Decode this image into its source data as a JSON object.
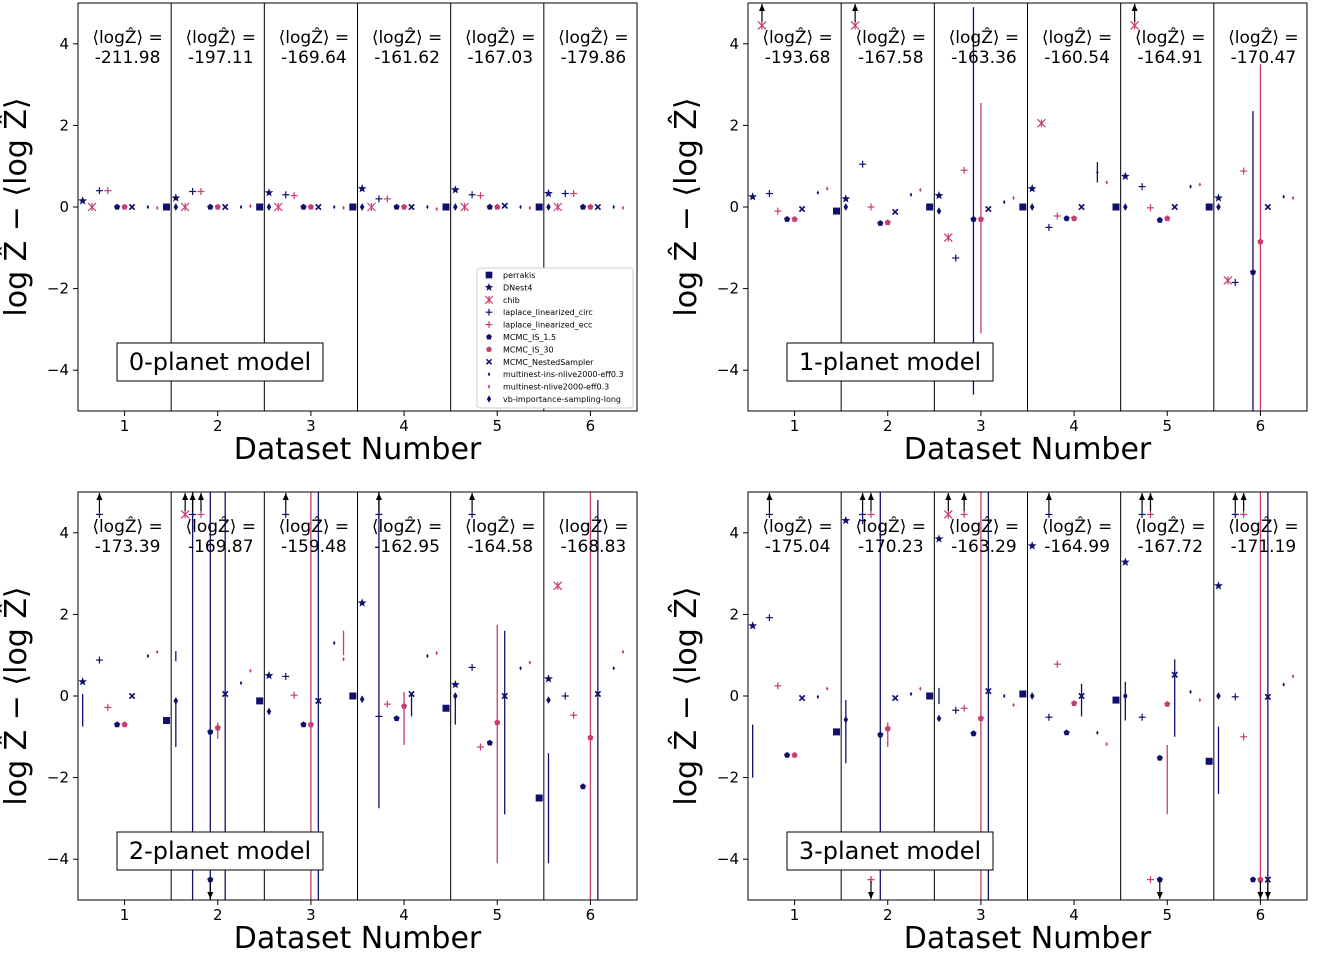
{
  "colors": {
    "navy": "#10106e",
    "pink": "#c83c73",
    "axis": "#000000"
  },
  "legend_entries": [
    {
      "name": "perrakis",
      "marker": "square",
      "color": "navy"
    },
    {
      "name": "DNest4",
      "marker": "star",
      "color": "navy"
    },
    {
      "name": "chib",
      "marker": "x-star",
      "color": "pink"
    },
    {
      "name": "laplace_linearized_circ",
      "marker": "plus",
      "color": "navy"
    },
    {
      "name": "laplace_linearized_ecc",
      "marker": "plus",
      "color": "pink"
    },
    {
      "name": "MCMC_IS_1.5",
      "marker": "pentagon",
      "color": "navy"
    },
    {
      "name": "MCMC_IS_30",
      "marker": "pentagon",
      "color": "pink"
    },
    {
      "name": "MCMC_NestedSampler",
      "marker": "x-filled",
      "color": "navy"
    },
    {
      "name": "multinest-ins-nlive2000-eff0.3",
      "marker": "thin-diamond",
      "color": "navy"
    },
    {
      "name": "multinest-nlive2000-eff0.3",
      "marker": "thin-diamond",
      "color": "pink"
    },
    {
      "name": "vb-importance-sampling-long",
      "marker": "diamond",
      "color": "navy"
    }
  ],
  "chart_data": [
    {
      "type": "scatter",
      "annotation": "0-planet model",
      "xlabel": "Dataset Number",
      "ylabel": "log Ẑ − ⟨log Ẑ⟩",
      "ylim": [
        -5,
        5
      ],
      "x_ticks": [
        1,
        2,
        3,
        4,
        5,
        6
      ],
      "y_ticks": [
        -4,
        -2,
        0,
        2,
        4
      ],
      "mean_label": "⟨logẐ⟩ =",
      "means": [
        "-211.98",
        "-197.11",
        "-169.64",
        "-161.62",
        "-167.03",
        "-179.86"
      ],
      "show_legend": true,
      "values": [
        [
          0,
          0.15,
          0,
          0.4,
          0.4,
          0,
          0,
          0,
          0,
          -0.02,
          0
        ],
        [
          0,
          0.22,
          0,
          0.38,
          0.38,
          0,
          0,
          0,
          0,
          0.02,
          0
        ],
        [
          0,
          0.35,
          0,
          0.3,
          0.28,
          0,
          0,
          0,
          0,
          -0.02,
          0
        ],
        [
          0,
          0.45,
          0,
          0.2,
          0.2,
          0,
          0,
          0,
          0,
          -0.05,
          0
        ],
        [
          0,
          0.42,
          0,
          0.3,
          0.28,
          0,
          0,
          0.03,
          0,
          -0.02,
          0
        ],
        [
          0,
          0.33,
          0,
          0.33,
          0.33,
          0,
          0,
          0,
          0,
          -0.02,
          0
        ]
      ],
      "errors": [],
      "overflow": []
    },
    {
      "type": "scatter",
      "annotation": "1-planet model",
      "xlabel": "Dataset Number",
      "ylabel": "log Ẑ − ⟨log Ẑ⟩",
      "ylim": [
        -5,
        5
      ],
      "x_ticks": [
        1,
        2,
        3,
        4,
        5,
        6
      ],
      "y_ticks": [
        -4,
        -2,
        0,
        2,
        4
      ],
      "mean_label": "⟨logẐ⟩ =",
      "means": [
        "-193.68",
        "-167.58",
        "-163.36",
        "-160.54",
        "-164.91",
        "-170.47"
      ],
      "show_legend": false,
      "values": [
        [
          0,
          0.25,
          null,
          0.33,
          -0.1,
          -0.3,
          -0.3,
          -0.05,
          0.35,
          0.45,
          0
        ],
        [
          -0.1,
          0.2,
          null,
          1.05,
          0,
          -0.4,
          -0.38,
          -0.12,
          0.3,
          0.42,
          -0.1
        ],
        [
          0,
          0.28,
          -0.75,
          -1.25,
          0.9,
          -0.3,
          -0.3,
          -0.05,
          0.12,
          0.22,
          0
        ],
        [
          0,
          0.45,
          2.05,
          -0.5,
          -0.22,
          -0.28,
          -0.28,
          0,
          0.85,
          0.6,
          0
        ],
        [
          0,
          0.75,
          null,
          0.5,
          -0.02,
          -0.32,
          -0.28,
          0,
          0.5,
          0.55,
          0
        ],
        [
          0,
          0.22,
          -1.8,
          -1.85,
          0.88,
          -1.6,
          -0.85,
          0,
          0.25,
          0.22,
          0
        ]
      ],
      "errors": [
        {
          "dataset": 3,
          "method": 5,
          "low": -4.6,
          "high": 4.9
        },
        {
          "dataset": 3,
          "method": 6,
          "low": -3.1,
          "high": 2.55
        },
        {
          "dataset": 4,
          "method": 8,
          "low": 0.6,
          "high": 1.1
        },
        {
          "dataset": 6,
          "method": 5,
          "low": -5,
          "high": 2.35
        },
        {
          "dataset": 6,
          "method": 6,
          "low": -5,
          "high": 3.5
        }
      ],
      "overflow": [
        {
          "dataset": 1,
          "method": 2,
          "dir": "up"
        },
        {
          "dataset": 2,
          "method": 2,
          "dir": "up"
        },
        {
          "dataset": 5,
          "method": 2,
          "dir": "up"
        }
      ]
    },
    {
      "type": "scatter",
      "annotation": "2-planet model",
      "xlabel": "Dataset Number",
      "ylabel": "log Ẑ − ⟨log Ẑ⟩",
      "ylim": [
        -5,
        5
      ],
      "x_ticks": [
        1,
        2,
        3,
        4,
        5,
        6
      ],
      "y_ticks": [
        -4,
        -2,
        0,
        2,
        4
      ],
      "mean_label": "⟨logẐ⟩ =",
      "means": [
        "-173.39",
        "-169.87",
        "-159.48",
        "-162.95",
        "-164.58",
        "-168.83"
      ],
      "show_legend": false,
      "values": [
        [
          -0.35,
          0.35,
          null,
          0.88,
          -0.28,
          -0.7,
          -0.7,
          0,
          0.98,
          1.08,
          -0.12
        ],
        [
          -0.6,
          null,
          null,
          null,
          null,
          -0.88,
          -0.78,
          0.05,
          0.32,
          0.62,
          -0.38
        ],
        [
          -0.12,
          0.5,
          null,
          0.48,
          0.02,
          -0.7,
          -0.7,
          -0.12,
          1.3,
          0.9,
          -0.08
        ],
        [
          0,
          2.28,
          null,
          -0.5,
          -0.2,
          -0.55,
          -0.25,
          0.05,
          0.98,
          1.05,
          0
        ],
        [
          -0.3,
          0.28,
          null,
          0.7,
          -1.25,
          -1.15,
          -0.65,
          0,
          0.68,
          0.82,
          -0.1
        ],
        [
          -2.5,
          0.42,
          2.7,
          0,
          -0.47,
          -2.22,
          -1.02,
          0.05,
          0.68,
          1.08,
          -0.12
        ]
      ],
      "errors": [
        {
          "dataset": 1,
          "method": 1,
          "low": -0.75,
          "high": 0.05
        },
        {
          "dataset": 1,
          "method": 10,
          "low": 0.85,
          "high": 1.1
        },
        {
          "dataset": 2,
          "method": 1,
          "low": -1.25,
          "high": -0.1
        },
        {
          "dataset": 2,
          "method": 3,
          "low": -5,
          "high": 5
        },
        {
          "dataset": 2,
          "method": 5,
          "low": -5,
          "high": 5
        },
        {
          "dataset": 2,
          "method": 6,
          "low": -1.05,
          "high": -0.65
        },
        {
          "dataset": 2,
          "method": 7,
          "low": -5,
          "high": 5
        },
        {
          "dataset": 3,
          "method": 6,
          "low": -5,
          "high": 5
        },
        {
          "dataset": 3,
          "method": 7,
          "low": -5,
          "high": 5
        },
        {
          "dataset": 3,
          "method": 9,
          "low": 1.0,
          "high": 1.6
        },
        {
          "dataset": 4,
          "method": 3,
          "low": -2.75,
          "high": 5
        },
        {
          "dataset": 4,
          "method": 6,
          "low": -1.2,
          "high": 0.1
        },
        {
          "dataset": 4,
          "method": 7,
          "low": -0.5,
          "high": 0.05
        },
        {
          "dataset": 5,
          "method": 1,
          "low": -0.7,
          "high": 0.05
        },
        {
          "dataset": 5,
          "method": 6,
          "low": -4.1,
          "high": 1.75
        },
        {
          "dataset": 5,
          "method": 7,
          "low": -2.9,
          "high": 1.6
        },
        {
          "dataset": 6,
          "method": 1,
          "low": -4.1,
          "high": -1.4
        },
        {
          "dataset": 6,
          "method": 6,
          "low": -5,
          "high": 5
        },
        {
          "dataset": 6,
          "method": 7,
          "low": -5,
          "high": 4.8
        }
      ],
      "overflow": [
        {
          "dataset": 1,
          "method": 3,
          "dir": "up"
        },
        {
          "dataset": 2,
          "method": 2,
          "dir": "up"
        },
        {
          "dataset": 2,
          "method": 3,
          "dir": "up"
        },
        {
          "dataset": 2,
          "method": 4,
          "dir": "up"
        },
        {
          "dataset": 2,
          "method": 5,
          "dir": "down"
        },
        {
          "dataset": 3,
          "method": 3,
          "dir": "up"
        },
        {
          "dataset": 4,
          "method": 3,
          "dir": "up"
        },
        {
          "dataset": 5,
          "method": 3,
          "dir": "up"
        }
      ]
    },
    {
      "type": "scatter",
      "annotation": "3-planet model",
      "xlabel": "Dataset Number",
      "ylabel": "log Ẑ − ⟨log Ẑ⟩",
      "ylim": [
        -5,
        5
      ],
      "x_ticks": [
        1,
        2,
        3,
        4,
        5,
        6
      ],
      "y_ticks": [
        -4,
        -2,
        0,
        2,
        4
      ],
      "mean_label": "⟨logẐ⟩ =",
      "means": [
        "-175.04",
        "-170.23",
        "-163.29",
        "-164.99",
        "-167.72",
        "-171.19"
      ],
      "show_legend": false,
      "values": [
        [
          -1.3,
          1.72,
          null,
          1.92,
          0.25,
          -1.45,
          -1.45,
          -0.05,
          -0.02,
          0.18,
          -0.58
        ],
        [
          -0.88,
          4.3,
          null,
          4.3,
          -4.5,
          -0.95,
          -0.8,
          -0.05,
          0.05,
          0.18,
          -0.55
        ],
        [
          0,
          3.85,
          null,
          -0.35,
          -0.3,
          -0.92,
          -0.55,
          0.12,
          0,
          -0.22,
          0
        ],
        [
          0.05,
          3.68,
          null,
          -0.52,
          0.78,
          -0.9,
          -0.18,
          0,
          -0.9,
          -1.18,
          0
        ],
        [
          -0.1,
          3.28,
          null,
          -0.52,
          -4.5,
          -1.52,
          -0.2,
          0.52,
          0.1,
          -0.1,
          0
        ],
        [
          -1.6,
          2.7,
          null,
          -0.02,
          -1.0,
          -4.5,
          -4.5,
          -0.02,
          0.28,
          0.48,
          -0.3
        ]
      ],
      "errors": [
        {
          "dataset": 1,
          "method": 1,
          "low": -2.0,
          "high": -0.7
        },
        {
          "dataset": 2,
          "method": 1,
          "low": -1.65,
          "high": -0.1
        },
        {
          "dataset": 2,
          "method": 5,
          "low": -5,
          "high": 5
        },
        {
          "dataset": 2,
          "method": 6,
          "low": -1.25,
          "high": -0.65
        },
        {
          "dataset": 3,
          "method": 1,
          "low": -0.2,
          "high": 0.2
        },
        {
          "dataset": 3,
          "method": 6,
          "low": -5,
          "high": 5
        },
        {
          "dataset": 3,
          "method": 7,
          "low": -5,
          "high": 5
        },
        {
          "dataset": 4,
          "method": 7,
          "low": -0.5,
          "high": 0.3
        },
        {
          "dataset": 5,
          "method": 1,
          "low": -0.6,
          "high": 0.35
        },
        {
          "dataset": 5,
          "method": 6,
          "low": -2.9,
          "high": -1.2
        },
        {
          "dataset": 5,
          "method": 7,
          "low": -1.0,
          "high": 0.9
        },
        {
          "dataset": 6,
          "method": 1,
          "low": -2.4,
          "high": -0.75
        },
        {
          "dataset": 6,
          "method": 6,
          "low": -5,
          "high": 5
        },
        {
          "dataset": 6,
          "method": 7,
          "low": -5,
          "high": 5
        }
      ],
      "overflow": [
        {
          "dataset": 1,
          "method": 3,
          "dir": "up"
        },
        {
          "dataset": 2,
          "method": 3,
          "dir": "up"
        },
        {
          "dataset": 2,
          "method": 4,
          "dir": "up"
        },
        {
          "dataset": 2,
          "method": 4,
          "dir": "down"
        },
        {
          "dataset": 3,
          "method": 2,
          "dir": "up"
        },
        {
          "dataset": 3,
          "method": 4,
          "dir": "up"
        },
        {
          "dataset": 4,
          "method": 3,
          "dir": "up"
        },
        {
          "dataset": 5,
          "method": 3,
          "dir": "up"
        },
        {
          "dataset": 5,
          "method": 4,
          "dir": "up"
        },
        {
          "dataset": 5,
          "method": 5,
          "dir": "down"
        },
        {
          "dataset": 6,
          "method": 3,
          "dir": "up"
        },
        {
          "dataset": 6,
          "method": 4,
          "dir": "up"
        },
        {
          "dataset": 6,
          "method": 6,
          "dir": "down"
        },
        {
          "dataset": 6,
          "method": 7,
          "dir": "down"
        }
      ]
    }
  ]
}
